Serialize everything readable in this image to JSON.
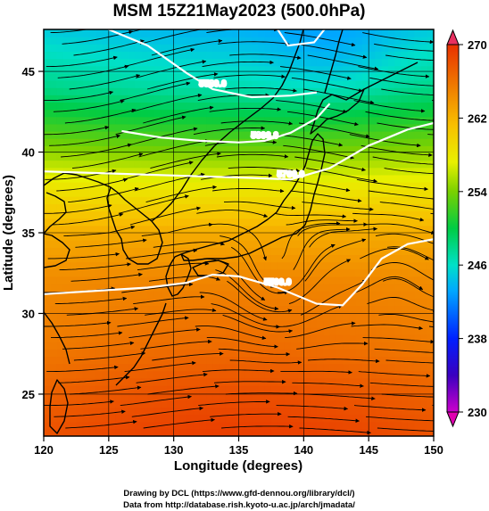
{
  "chart_data": {
    "type": "heatmap",
    "title": "MSM 15Z21May2023 (500.0hPa)",
    "xlabel": "Longitude (degrees)",
    "ylabel": "Latitude  (degrees)",
    "xlim": [
      120,
      150
    ],
    "ylim": [
      22.4,
      47.6
    ],
    "xticks": [
      "120",
      "125",
      "130",
      "135",
      "140",
      "145",
      "150"
    ],
    "yticks": [
      "25",
      "30",
      "35",
      "40",
      "45"
    ],
    "colorbar": {
      "min": 230,
      "max": 270,
      "ticks": [
        "230",
        "238",
        "246",
        "254",
        "262",
        "270"
      ]
    },
    "contours": [
      {
        "label": "5500.0",
        "level": 5500,
        "points": [
          [
            120,
            31.2
          ],
          [
            124,
            31.4
          ],
          [
            128,
            31.6
          ],
          [
            131,
            31.9
          ],
          [
            133,
            32.4
          ],
          [
            135,
            32.3
          ],
          [
            138,
            31.6
          ],
          [
            141,
            30.6
          ],
          [
            143,
            30.5
          ],
          [
            144.5,
            31.8
          ],
          [
            146,
            33.4
          ],
          [
            148,
            34.3
          ],
          [
            150,
            34.6
          ]
        ]
      },
      {
        "label": "5700.0",
        "level": 5700,
        "points": [
          [
            120,
            38.8
          ],
          [
            124,
            38.7
          ],
          [
            128,
            38.6
          ],
          [
            132,
            38.5
          ],
          [
            136,
            38.4
          ],
          [
            139,
            38.3
          ],
          [
            142,
            39.0
          ],
          [
            145,
            40.4
          ],
          [
            148,
            41.4
          ],
          [
            150,
            41.8
          ]
        ]
      },
      {
        "label": "5800.0",
        "level": 5800,
        "points": [
          [
            126,
            41.3
          ],
          [
            129,
            40.9
          ],
          [
            132,
            40.7
          ],
          [
            135,
            40.6
          ],
          [
            137,
            40.7
          ],
          [
            139,
            41.2
          ],
          [
            141,
            42.1
          ],
          [
            142,
            43.0
          ]
        ]
      },
      {
        "label": "5580.0",
        "level": 5580,
        "points": [
          [
            125,
            47.6
          ],
          [
            128,
            46.6
          ],
          [
            131,
            44.9
          ],
          [
            133,
            43.9
          ],
          [
            136,
            43.4
          ],
          [
            139,
            43.5
          ],
          [
            141,
            43.7
          ]
        ]
      },
      {
        "label": "",
        "level": 5500,
        "points": [
          [
            138,
            47.6
          ],
          [
            138.8,
            46.6
          ],
          [
            140.8,
            46.8
          ],
          [
            141.6,
            47.6
          ]
        ]
      }
    ],
    "temperature_anchors": [
      {
        "lat": 47.6,
        "value": 245
      },
      {
        "lat": 44,
        "value": 248
      },
      {
        "lat": 41,
        "value": 253
      },
      {
        "lat": 38,
        "value": 258
      },
      {
        "lat": 35,
        "value": 262.5
      },
      {
        "lat": 32,
        "value": 264.5
      },
      {
        "lat": 28,
        "value": 265.5
      },
      {
        "lat": 25,
        "value": 267
      },
      {
        "lat": 22.4,
        "value": 268
      }
    ],
    "vector_field": "wind streamlines (arrows), westerly flow with cyclonic curl near 138E 32N",
    "credits": [
      "Drawing by DCL (https://www.gfd-dennou.org/library/dcl/)",
      "Data from http://database.rish.kyoto-u.ac.jp/arch/jmadata/"
    ]
  }
}
